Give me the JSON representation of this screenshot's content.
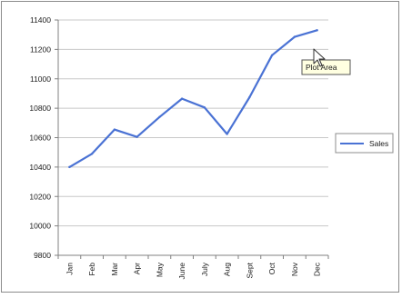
{
  "chart_data": {
    "type": "line",
    "categories": [
      "Jan",
      "Feb",
      "Mar",
      "Apr",
      "May",
      "June",
      "July",
      "Aug",
      "Sept",
      "Oct",
      "Nov",
      "Dec"
    ],
    "series": [
      {
        "name": "Sales",
        "values": [
          10400,
          10490,
          10655,
          10605,
          10740,
          10865,
          10805,
          10625,
          10875,
          11160,
          11285,
          11330
        ],
        "color": "#4a72d4"
      }
    ],
    "ylim": [
      9800,
      11400
    ],
    "yticks": [
      "9800",
      "10000",
      "10200",
      "10400",
      "10600",
      "10800",
      "11000",
      "11200",
      "11400"
    ],
    "grid": true,
    "legend_position": "right"
  },
  "tooltip": {
    "text": "Plot Area"
  },
  "colors": {
    "gridline": "#c8c8c8",
    "axis": "#808080",
    "frame": "#8c8c8c"
  }
}
